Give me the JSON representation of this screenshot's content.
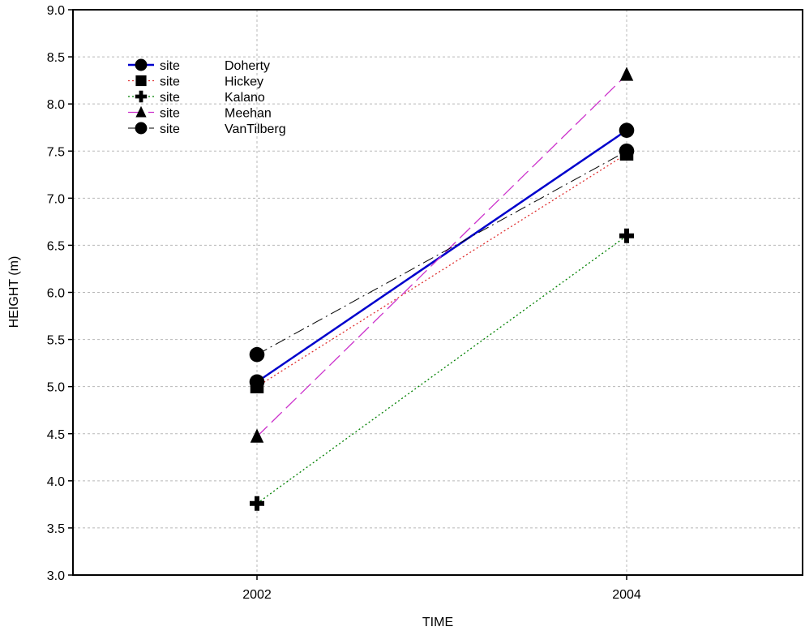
{
  "chart_data": {
    "type": "line",
    "title": "",
    "xlabel": "TIME",
    "ylabel": "HEIGHT (m)",
    "x": [
      "2002",
      "2004"
    ],
    "ylim": [
      3.0,
      9.0
    ],
    "yticks": [
      "3.0",
      "3.5",
      "4.0",
      "4.5",
      "5.0",
      "5.5",
      "6.0",
      "6.5",
      "7.0",
      "7.5",
      "8.0",
      "8.5",
      "9.0"
    ],
    "grid": true,
    "legend_position": "top-left",
    "series": [
      {
        "name": "site     Doherty",
        "prefix": "site",
        "site": "Doherty",
        "values": [
          5.05,
          7.72
        ],
        "color": "#0000cc",
        "line_style": "solid",
        "marker": "circle"
      },
      {
        "name": "site     Hickey",
        "prefix": "site",
        "site": "Hickey",
        "values": [
          5.0,
          7.47
        ],
        "color": "#e03030",
        "line_style": "dotted",
        "marker": "square"
      },
      {
        "name": "site     Kalano",
        "prefix": "site",
        "site": "Kalano",
        "values": [
          3.76,
          6.6
        ],
        "color": "#008000",
        "line_style": "dotted",
        "marker": "plus"
      },
      {
        "name": "site     Meehan",
        "prefix": "site",
        "site": "Meehan",
        "values": [
          4.47,
          8.31
        ],
        "color": "#cc33cc",
        "line_style": "dashed",
        "marker": "triangle"
      },
      {
        "name": "site     VanTilberg",
        "prefix": "site",
        "site": "VanTilberg",
        "values": [
          5.34,
          7.5
        ],
        "color": "#000000",
        "line_style": "dash-dot",
        "marker": "circle"
      }
    ]
  }
}
